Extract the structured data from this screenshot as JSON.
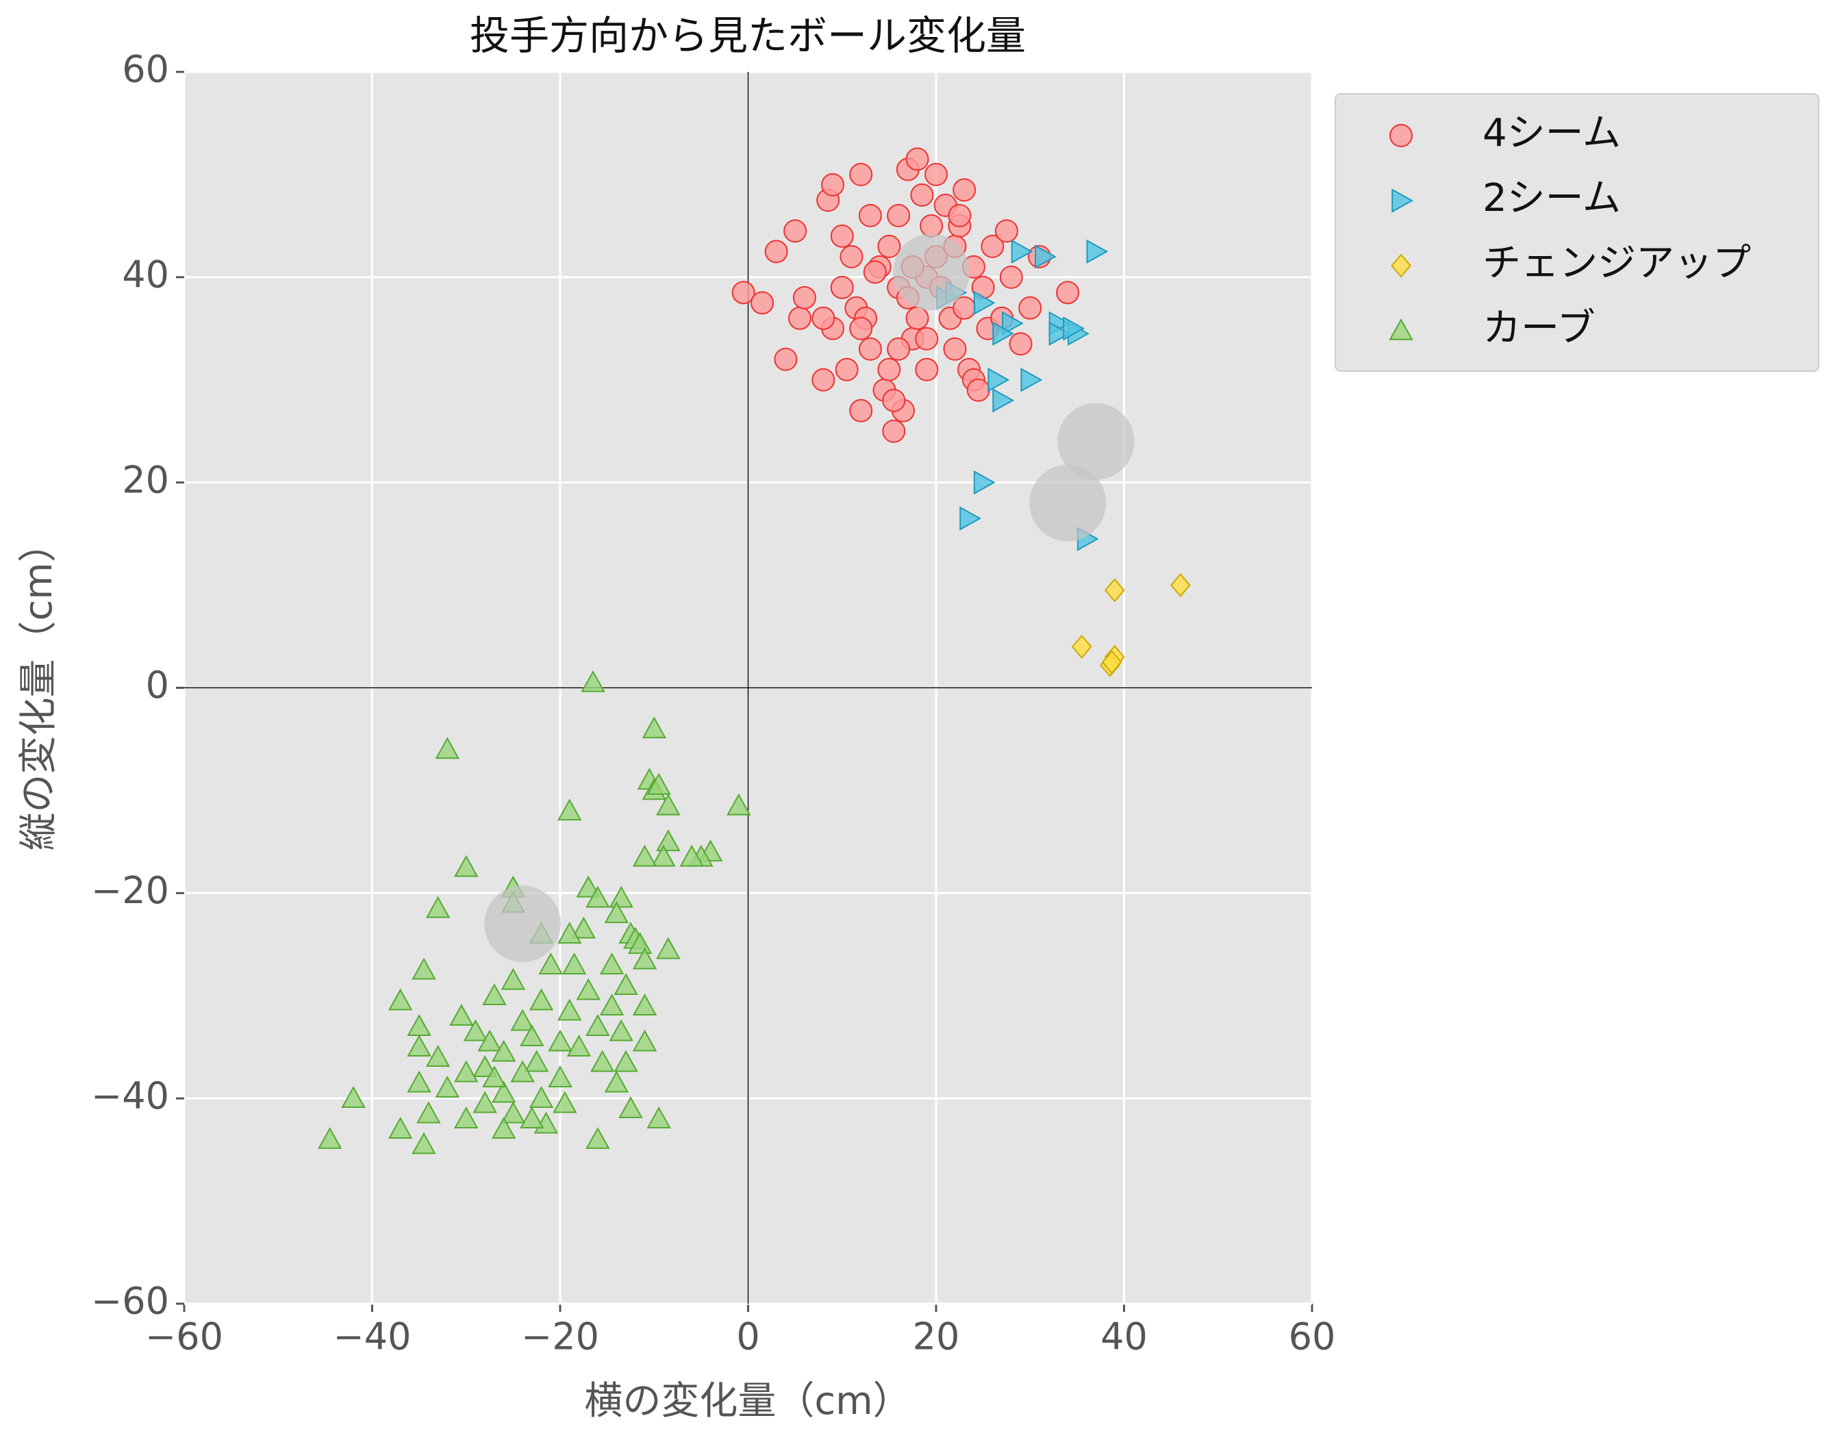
{
  "chart_data": {
    "type": "scatter",
    "title": "投手方向から見たボール変化量",
    "x_label": "横の変化量（cm）",
    "y_label": "縦の変化量（cm）",
    "xlim": [
      -60,
      60
    ],
    "ylim": [
      -60,
      60
    ],
    "xticks": [
      {
        "value": -60,
        "label": "−60"
      },
      {
        "value": -40,
        "label": "−40"
      },
      {
        "value": -20,
        "label": "−20"
      },
      0,
      20,
      40,
      60
    ],
    "yticks": [
      {
        "value": -60,
        "label": "−60"
      },
      {
        "value": -40,
        "label": "−40"
      },
      {
        "value": -20,
        "label": "−20"
      },
      0,
      20,
      40,
      60
    ],
    "grid": true,
    "zero_lines": true,
    "legend": "outside upper right",
    "series": [
      {
        "name": "4シーム",
        "marker": "circle",
        "color": "#ff9a9a",
        "edge": "#ee3333",
        "x": [
          -0.5,
          1.5,
          3,
          4,
          5,
          5.5,
          6,
          8,
          8.5,
          9,
          9,
          10,
          10.5,
          11,
          11.5,
          12,
          12,
          12.5,
          13,
          13,
          14,
          14.5,
          15,
          15,
          15.5,
          16,
          16,
          16.5,
          17,
          17,
          17.5,
          18,
          18,
          18.5,
          19,
          19,
          19.5,
          20,
          20,
          20.5,
          21,
          21.5,
          22,
          22,
          22.5,
          23,
          23,
          23.5,
          24,
          24,
          25,
          25.5,
          26,
          27,
          27.5,
          28,
          29,
          30,
          31,
          34,
          12,
          15.5,
          17.5,
          13.5,
          19,
          22.5,
          10,
          16,
          24.5,
          8
        ],
        "values": [
          38.5,
          37.5,
          42.5,
          32,
          44.5,
          36,
          38,
          30,
          47.5,
          49,
          35,
          44,
          31,
          42,
          37,
          27,
          50,
          36,
          46,
          33,
          41,
          29,
          43,
          31,
          25,
          39,
          46,
          27,
          38,
          50.5,
          34,
          51.5,
          36,
          48,
          40,
          31,
          45,
          50,
          42,
          39,
          47,
          36,
          43,
          33,
          45,
          48.5,
          37,
          31,
          41,
          30,
          39,
          35,
          43,
          36,
          44.5,
          40,
          33.5,
          37,
          42,
          38.5,
          35,
          28,
          41,
          40.5,
          34,
          46,
          39,
          33,
          29,
          36
        ]
      },
      {
        "name": "2シーム",
        "marker": "triangle-right",
        "color": "#4cc4e4",
        "edge": "#2299bb",
        "x": [
          29,
          31.5,
          37,
          21,
          25,
          28,
          33,
          33,
          35,
          27,
          26.5,
          30,
          27,
          25,
          23.5,
          36,
          34.5,
          22
        ],
        "values": [
          42.5,
          42,
          42.5,
          38,
          37.5,
          35.5,
          35.5,
          34.5,
          34.5,
          34.5,
          30,
          30,
          28,
          20,
          16.5,
          14.5,
          35,
          38.5
        ]
      },
      {
        "name": "チェンジアップ",
        "marker": "diamond",
        "color": "#ffdd44",
        "edge": "#ccaa00",
        "x": [
          46,
          39,
          35.5,
          39,
          38.5,
          38.7
        ],
        "values": [
          10,
          9.5,
          4,
          3,
          2.2,
          2.5
        ]
      },
      {
        "name": "カーブ",
        "marker": "triangle-up",
        "color": "#9ad47a",
        "edge": "#55aa33",
        "x": [
          -16.5,
          -32,
          -10,
          -10.5,
          -10,
          -9.5,
          -8.5,
          -1,
          -19,
          -8.5,
          -9,
          -4,
          -5,
          -6,
          -11,
          -30,
          -33,
          -25,
          -25,
          -17,
          -16,
          -13.5,
          -14,
          -17.5,
          -19,
          -22,
          -12.5,
          -12,
          -11.5,
          -8.5,
          -11,
          -14.5,
          -18.5,
          -21,
          -34.5,
          -25,
          -13,
          -17,
          -27,
          -22,
          -37,
          -11,
          -14.5,
          -19,
          -30.5,
          -24,
          -35,
          -16,
          -13.5,
          -29,
          -23,
          -27.5,
          -11,
          -20,
          -18,
          -35,
          -26,
          -33,
          -22.5,
          -15.5,
          -13,
          -28,
          -24,
          -30,
          -20,
          -35,
          -14,
          -32,
          -26,
          -22,
          -42,
          -19.5,
          -28,
          -12.5,
          -34,
          -25,
          -9.5,
          -30,
          -21.5,
          -26,
          -37,
          -44.5,
          -16,
          -34.5,
          -23,
          -27
        ],
        "values": [
          0.5,
          -6,
          -4,
          -9,
          -10,
          -9.5,
          -11.5,
          -11.5,
          -12,
          -15,
          -16.5,
          -16,
          -16.5,
          -16.5,
          -16.5,
          -17.5,
          -21.5,
          -19.5,
          -21,
          -19.5,
          -20.5,
          -20.5,
          -22,
          -23.5,
          -24,
          -24,
          -24,
          -24.5,
          -25,
          -25.5,
          -26.5,
          -27,
          -27,
          -27,
          -27.5,
          -28.5,
          -29,
          -29.5,
          -30,
          -30.5,
          -30.5,
          -31,
          -31,
          -31.5,
          -32,
          -32.5,
          -33,
          -33,
          -33.5,
          -33.5,
          -34,
          -34.5,
          -34.5,
          -34.5,
          -35,
          -35,
          -35.5,
          -36,
          -36.5,
          -36.5,
          -36.5,
          -37,
          -37.5,
          -37.5,
          -38,
          -38.5,
          -38.5,
          -39,
          -39.5,
          -40,
          -40,
          -40.5,
          -40.5,
          -41,
          -41.5,
          -41.5,
          -42,
          -42,
          -42.5,
          -43,
          -43,
          -44,
          -44,
          -44.5,
          -42,
          -38
        ]
      }
    ],
    "highlights": {
      "color": "#c4c4c4",
      "x": [
        19.5,
        37,
        34,
        -24
      ],
      "values": [
        40.5,
        24,
        18,
        -23
      ]
    }
  }
}
